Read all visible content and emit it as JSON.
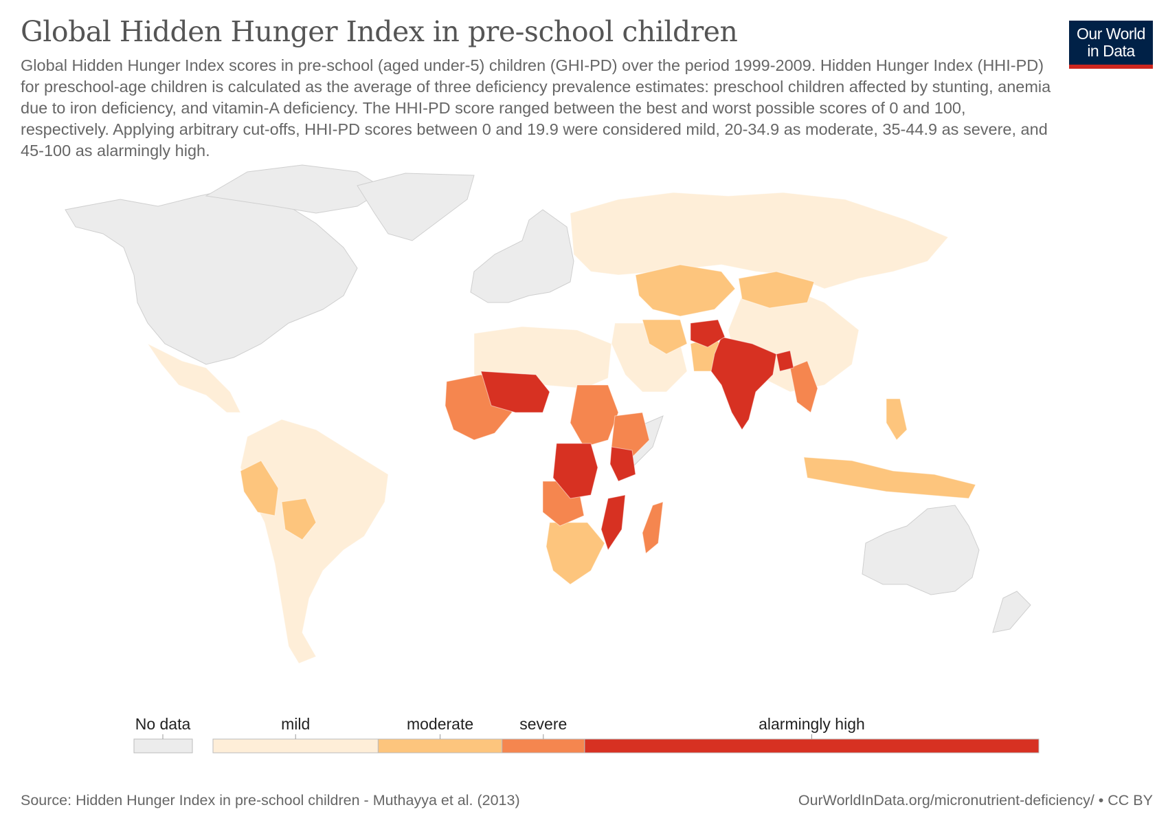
{
  "header": {
    "title": "Global Hidden Hunger Index in pre-school children",
    "subtitle": "Global Hidden Hunger Index scores in pre-school (aged under-5) children (GHI-PD) over the period 1999-2009. Hidden Hunger Index (HHI-PD) for preschool-age children is calculated as the average of three deficiency prevalence estimates: preschool children affected by stunting, anemia due to iron deficiency, and vitamin-A deficiency. The HHI-PD score ranged between the best and worst possible scores of 0 and 100, respectively. Applying arbitrary cut-offs, HHI-PD scores between 0 and 19.9 were considered mild, 20-34.9 as moderate, 35-44.9 as severe, and 45-100 as alarmingly high."
  },
  "logo": {
    "line1": "Our World",
    "line2": "in Data"
  },
  "legend": {
    "no_data": {
      "label": "No data",
      "color": "#ececec"
    },
    "categories": [
      {
        "label": "mild",
        "range": [
          0,
          19.9
        ],
        "color": "#feeed8"
      },
      {
        "label": "moderate",
        "range": [
          20,
          34.9
        ],
        "color": "#fdc57d"
      },
      {
        "label": "severe",
        "range": [
          35,
          44.9
        ],
        "color": "#f5864f"
      },
      {
        "label": "alarmingly high",
        "range": [
          45,
          100
        ],
        "color": "#d73122"
      }
    ]
  },
  "footer": {
    "source": "Source: Hidden Hunger Index in pre-school children - Muthayya et al. (2013)",
    "url": "OurWorldInData.org/micronutrient-deficiency/ • CC BY"
  },
  "colors": {
    "no_data": "#ececec",
    "mild": "#feeed8",
    "moderate": "#fdc57d",
    "severe": "#f5864f",
    "alarming": "#d73122",
    "logo_bg": "#002147",
    "logo_accent": "#ce261e"
  },
  "map_data": {
    "regions": [
      {
        "name": "North America",
        "category": "no_data"
      },
      {
        "name": "Greenland",
        "category": "no_data"
      },
      {
        "name": "Europe",
        "category": "no_data"
      },
      {
        "name": "Australia",
        "category": "no_data"
      },
      {
        "name": "Mexico",
        "category": "mild"
      },
      {
        "name": "South America",
        "category": "mild"
      },
      {
        "name": "Russia",
        "category": "mild"
      },
      {
        "name": "China",
        "category": "mild"
      },
      {
        "name": "North Africa",
        "category": "mild"
      },
      {
        "name": "Middle East",
        "category": "mild"
      },
      {
        "name": "Central Asia",
        "category": "moderate"
      },
      {
        "name": "Mongolia",
        "category": "moderate"
      },
      {
        "name": "Pakistan",
        "category": "moderate"
      },
      {
        "name": "Southern Africa",
        "category": "moderate"
      },
      {
        "name": "Indonesia",
        "category": "moderate"
      },
      {
        "name": "Peru",
        "category": "moderate"
      },
      {
        "name": "Bolivia",
        "category": "moderate"
      },
      {
        "name": "West Africa",
        "category": "severe"
      },
      {
        "name": "Sudan",
        "category": "severe"
      },
      {
        "name": "Ethiopia",
        "category": "severe"
      },
      {
        "name": "Angola",
        "category": "severe"
      },
      {
        "name": "Madagascar",
        "category": "severe"
      },
      {
        "name": "Myanmar",
        "category": "severe"
      },
      {
        "name": "India",
        "category": "alarming"
      },
      {
        "name": "Afghanistan",
        "category": "alarming"
      },
      {
        "name": "Sahel",
        "category": "alarming"
      },
      {
        "name": "DR Congo",
        "category": "alarming"
      },
      {
        "name": "Kenya",
        "category": "alarming"
      },
      {
        "name": "Mozambique",
        "category": "alarming"
      },
      {
        "name": "Bangladesh",
        "category": "alarming"
      }
    ]
  }
}
